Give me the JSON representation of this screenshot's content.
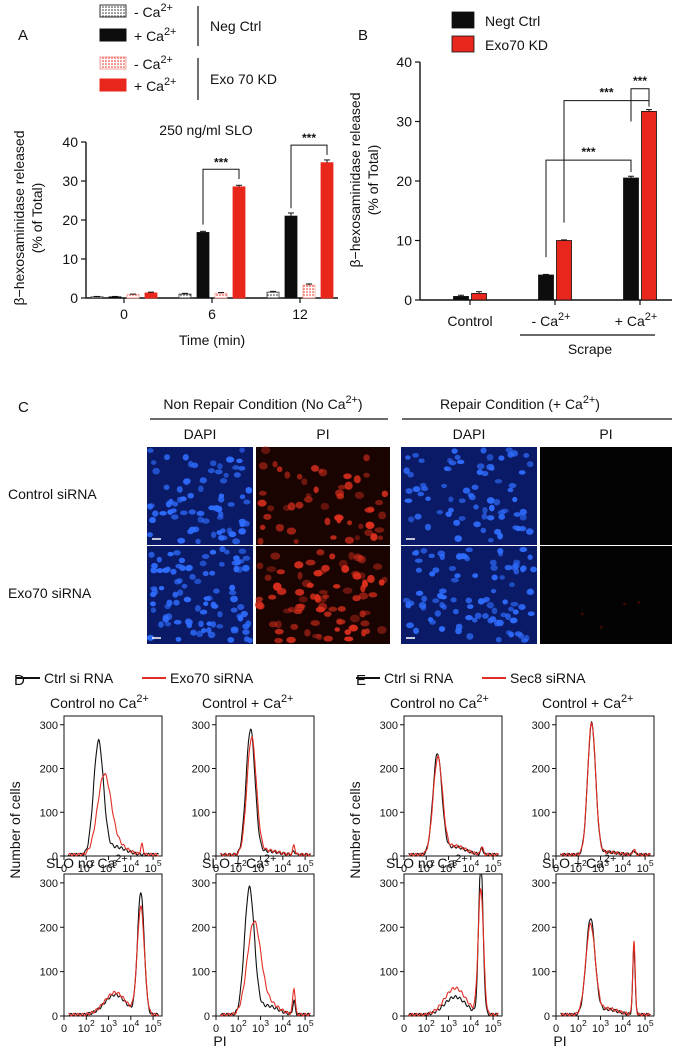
{
  "chart_data": [
    {
      "panel": "A",
      "type": "bar",
      "title": "250 ng/ml SLO",
      "xlabel": "Time (min)",
      "ylabel_line1": "β−hexosaminidase released",
      "ylabel_line2": "(% of Total)",
      "ylim": [
        0,
        40
      ],
      "yticks": [
        "0",
        "10",
        "20",
        "30",
        "40"
      ],
      "categories": [
        "0",
        "6",
        "12"
      ],
      "legend": [
        {
          "label": "- Ca2+",
          "base": "- Ca",
          "sup": "2+"
        },
        {
          "label": "+ Ca2+",
          "base": "+ Ca",
          "sup": "2+"
        },
        {
          "label": "- Ca2+",
          "base": "- Ca",
          "sup": "2+"
        },
        {
          "label": "+ Ca2+",
          "base": "+ Ca",
          "sup": "2+"
        }
      ],
      "group_labels": [
        "Neg Ctrl",
        "Exo 70 KD"
      ],
      "series": [
        {
          "name": "Neg Ctrl - Ca2+",
          "values": [
            0.3,
            1.0,
            1.5
          ],
          "errors": [
            0.1,
            0.2,
            0.2
          ]
        },
        {
          "name": "Neg Ctrl + Ca2+",
          "values": [
            0.3,
            16.8,
            21.0
          ],
          "errors": [
            0.1,
            0.3,
            0.8
          ]
        },
        {
          "name": "Exo 70 KD - Ca2+",
          "values": [
            0.9,
            1.2,
            3.3
          ],
          "errors": [
            0.1,
            0.2,
            0.3
          ]
        },
        {
          "name": "Exo 70 KD + Ca2+",
          "values": [
            1.3,
            28.5,
            34.7
          ],
          "errors": [
            0.2,
            0.4,
            0.7
          ]
        }
      ],
      "significance": [
        "***",
        "***"
      ]
    },
    {
      "panel": "B",
      "type": "bar",
      "ylabel_line1": "β−hexosaminidase released",
      "ylabel_line2": "(% of Total)",
      "ylim": [
        0,
        40
      ],
      "yticks": [
        "0",
        "10",
        "20",
        "30",
        "40"
      ],
      "categories": [
        {
          "base": "Control",
          "sup": ""
        },
        {
          "base": "- Ca",
          "sup": "2+"
        },
        {
          "base": "+ Ca",
          "sup": "2+"
        }
      ],
      "bracket_label": "Scrape",
      "series": [
        {
          "name": "Negt Ctrl",
          "values": [
            0.6,
            4.2,
            20.5
          ],
          "errors": [
            0.2,
            0.1,
            0.3
          ]
        },
        {
          "name": "Exo70 KD",
          "values": [
            1.1,
            10.0,
            31.7
          ],
          "errors": [
            0.3,
            0.1,
            0.3
          ]
        }
      ],
      "significance": [
        "***",
        "***",
        "***"
      ]
    },
    {
      "panel": "D",
      "type": "line",
      "legend": [
        "Ctrl si RNA",
        "Exo70 siRNA"
      ],
      "ylabel": "Number of cells",
      "xlabel": "PI",
      "yticks": [
        "0",
        "100",
        "200",
        "300"
      ],
      "ylim": [
        0,
        320
      ],
      "xticks": [
        {
          "base": "0",
          "sup": ""
        },
        {
          "base": "10",
          "sup": "2"
        },
        {
          "base": "10",
          "sup": "3"
        },
        {
          "base": "10",
          "sup": "4"
        },
        {
          "base": "10",
          "sup": "5"
        }
      ],
      "subplots": [
        {
          "title": "Control no Ca",
          "sup": "2+",
          "ctrl": {
            "peak": 2.55,
            "height": 255,
            "width": 0.22,
            "tail": 18,
            "high": 0
          },
          "test": {
            "peak": 2.8,
            "height": 170,
            "width": 0.3,
            "tail": 25,
            "high": 22
          }
        },
        {
          "title": "Control + Ca",
          "sup": "2+",
          "ctrl": {
            "peak": 2.55,
            "height": 285,
            "width": 0.2,
            "tail": 8,
            "high": 8
          },
          "test": {
            "peak": 2.6,
            "height": 265,
            "width": 0.21,
            "tail": 10,
            "high": 20
          }
        },
        {
          "title": "SLO no Ca",
          "sup": "2+",
          "ctrl": {
            "peak": 4.45,
            "height": 275,
            "width": 0.15,
            "tail": 45,
            "high": 0
          },
          "test": {
            "peak": 4.45,
            "height": 240,
            "width": 0.16,
            "tail": 50,
            "high": 0
          }
        },
        {
          "title": "SLO + Ca",
          "sup": "2+",
          "ctrl": {
            "peak": 2.5,
            "height": 282,
            "width": 0.22,
            "tail": 20,
            "high": 30
          },
          "test": {
            "peak": 2.7,
            "height": 198,
            "width": 0.3,
            "tail": 28,
            "high": 60
          }
        }
      ]
    },
    {
      "panel": "E",
      "type": "line",
      "legend": [
        "Ctrl si RNA",
        "Sec8 siRNA"
      ],
      "ylabel": "Number of cells",
      "xlabel": "PI",
      "yticks": [
        "0",
        "100",
        "200",
        "300"
      ],
      "ylim": [
        0,
        320
      ],
      "xticks": [
        {
          "base": "0",
          "sup": ""
        },
        {
          "base": "10",
          "sup": "2"
        },
        {
          "base": "10",
          "sup": "3"
        },
        {
          "base": "10",
          "sup": "4"
        },
        {
          "base": "10",
          "sup": "5"
        }
      ],
      "subplots": [
        {
          "title": "Control no Ca",
          "sup": "2+",
          "ctrl": {
            "peak": 2.5,
            "height": 228,
            "width": 0.2,
            "tail": 18,
            "high": 15
          },
          "test": {
            "peak": 2.52,
            "height": 218,
            "width": 0.21,
            "tail": 20,
            "high": 18
          }
        },
        {
          "title": "Control + Ca",
          "sup": "2+",
          "ctrl": {
            "peak": 2.6,
            "height": 298,
            "width": 0.18,
            "tail": 6,
            "high": 10
          },
          "test": {
            "peak": 2.6,
            "height": 300,
            "width": 0.18,
            "tail": 6,
            "high": 12
          }
        },
        {
          "title": "SLO no Ca",
          "sup": "2+",
          "ctrl": {
            "peak": 4.45,
            "height": 345,
            "width": 0.1,
            "tail": 40,
            "high": 0
          },
          "test": {
            "peak": 4.45,
            "height": 280,
            "width": 0.12,
            "tail": 60,
            "high": 0
          }
        },
        {
          "title": "SLO + Ca",
          "sup": "2+",
          "ctrl": {
            "peak": 2.55,
            "height": 215,
            "width": 0.2,
            "tail": 12,
            "high": 150
          },
          "test": {
            "peak": 2.55,
            "height": 200,
            "width": 0.21,
            "tail": 14,
            "high": 165
          }
        }
      ]
    }
  ],
  "panel_letters": {
    "a": "A",
    "b": "B",
    "c": "C",
    "d": "D",
    "e": "E"
  },
  "microscopy": {
    "condition_left": {
      "base": "Non Repair Condition (No Ca",
      "sup": "2+",
      "tail": ")"
    },
    "condition_right": {
      "base": "Repair Condition (+ Ca",
      "sup": "2+",
      "tail": ")"
    },
    "column_labels": [
      "DAPI",
      "PI",
      "DAPI",
      "PI"
    ],
    "row_labels": [
      "Control siRNA",
      "Exo70 siRNA"
    ]
  },
  "colors": {
    "ctrl_bar": "#0d0d0d",
    "kd_bar": "#e8261c",
    "kd_light": "#f4a09a",
    "hist_ctrl": "#111111",
    "hist_test": "#e32d24",
    "dapi_bg": "#0a1a66",
    "dapi_nuc": "#2f6dff",
    "pi_red": "#e0301e"
  }
}
